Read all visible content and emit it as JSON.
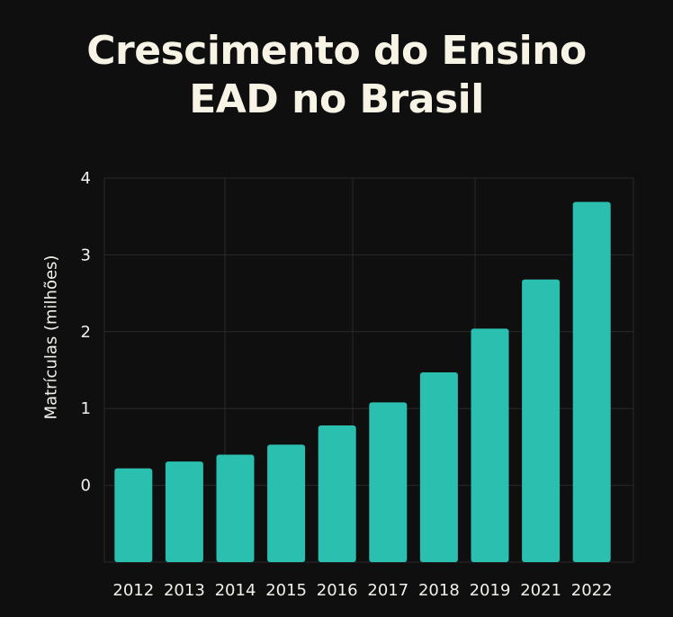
{
  "chart_data": {
    "type": "bar",
    "title_lines": [
      "Crescimento do Ensino",
      "EAD no Brasil"
    ],
    "xlabel": "",
    "ylabel": "Matrículas (milhões)",
    "categories": [
      "2012",
      "2013",
      "2014",
      "2015",
      "2016",
      "2017",
      "2018",
      "2019",
      "2021",
      "2022"
    ],
    "values": [
      0.22,
      0.31,
      0.4,
      0.53,
      0.78,
      1.08,
      1.47,
      2.04,
      2.68,
      3.69
    ],
    "yticks": [
      "4",
      "3",
      "2",
      "1",
      "0"
    ],
    "ylim": [
      -1,
      4
    ],
    "grid": true,
    "bar_color": "#2bbfb0",
    "grid_color": "#2a2a2c",
    "background": "#0f0f10"
  }
}
